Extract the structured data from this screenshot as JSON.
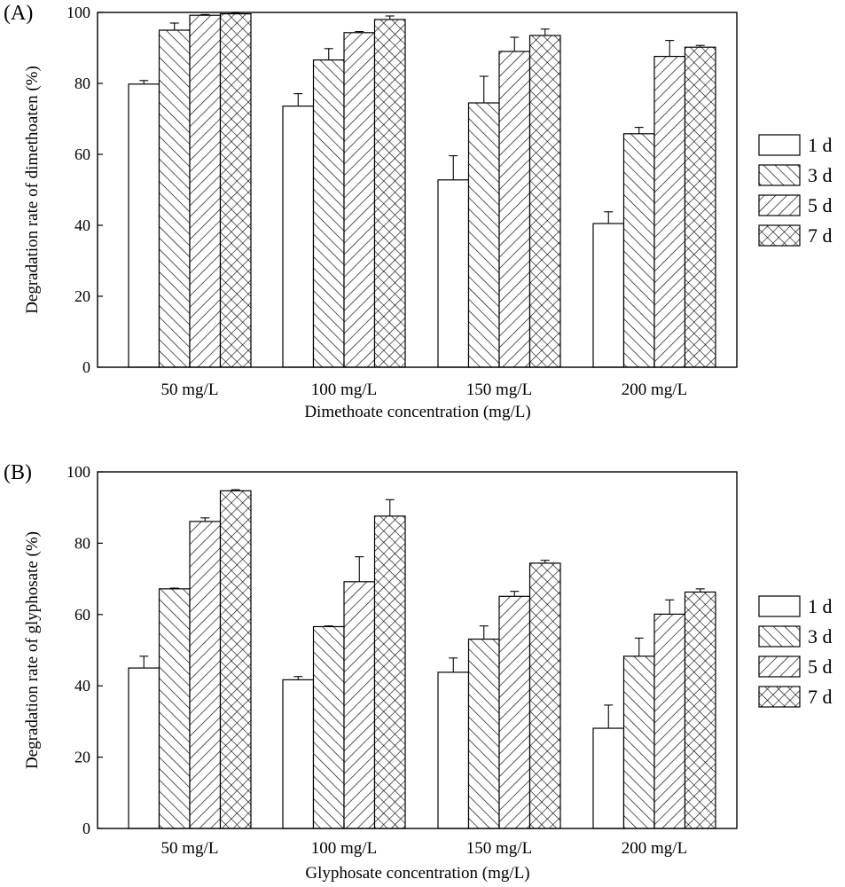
{
  "colors": {
    "ink": "#000000",
    "paper": "#ffffff"
  },
  "legend": {
    "entries": [
      {
        "label": "1 d",
        "pattern": "none"
      },
      {
        "label": "3 d",
        "pattern": "hatch-back"
      },
      {
        "label": "5 d",
        "pattern": "hatch-forward"
      },
      {
        "label": "7 d",
        "pattern": "crosshatch"
      }
    ]
  },
  "chart_data": [
    {
      "type": "bar",
      "panel": "(A)",
      "title": "",
      "xlabel": "Dimethoate concentration (mg/L)",
      "ylabel": "Degradation rate of dimethoaten (%)",
      "ylim": [
        0,
        100
      ],
      "yticks": [
        0,
        20,
        40,
        60,
        80,
        100
      ],
      "grid": false,
      "legend_position": "right",
      "categories": [
        "50 mg/L",
        "100 mg/L",
        "150 mg/L",
        "200 mg/L"
      ],
      "series": [
        {
          "name": "1 d",
          "values": [
            79.8,
            73.6,
            52.8,
            40.5
          ],
          "errors": [
            1.0,
            3.5,
            6.8,
            3.3
          ]
        },
        {
          "name": "3 d",
          "values": [
            95.0,
            86.6,
            74.5,
            65.8
          ],
          "errors": [
            2.0,
            3.2,
            7.5,
            1.8
          ]
        },
        {
          "name": "5 d",
          "values": [
            99.2,
            94.3,
            89.0,
            87.6
          ],
          "errors": [
            0.2,
            0.3,
            4.0,
            4.5
          ]
        },
        {
          "name": "7 d",
          "values": [
            99.6,
            98.0,
            93.5,
            90.2
          ],
          "errors": [
            0.2,
            1.0,
            1.8,
            0.5
          ]
        }
      ]
    },
    {
      "type": "bar",
      "panel": "(B)",
      "title": "",
      "xlabel": "Glyphosate concentration (mg/L)",
      "ylabel": "Degradation rate of glyphosate (%)",
      "ylim": [
        0,
        100
      ],
      "yticks": [
        0,
        20,
        40,
        60,
        80,
        100
      ],
      "grid": false,
      "legend_position": "right",
      "categories": [
        "50 mg/L",
        "100 mg/L",
        "150 mg/L",
        "200 mg/L"
      ],
      "series": [
        {
          "name": "1 d",
          "values": [
            45.0,
            41.7,
            43.8,
            28.1
          ],
          "errors": [
            3.3,
            0.9,
            4.0,
            6.5
          ]
        },
        {
          "name": "3 d",
          "values": [
            67.2,
            56.6,
            53.1,
            48.3
          ],
          "errors": [
            0.2,
            0.2,
            3.7,
            5.1
          ]
        },
        {
          "name": "5 d",
          "values": [
            86.1,
            69.2,
            65.1,
            60.1
          ],
          "errors": [
            1.0,
            7.0,
            1.4,
            4.0
          ]
        },
        {
          "name": "7 d",
          "values": [
            94.7,
            87.6,
            74.4,
            66.3
          ],
          "errors": [
            0.3,
            4.6,
            0.8,
            0.9
          ]
        }
      ]
    }
  ]
}
